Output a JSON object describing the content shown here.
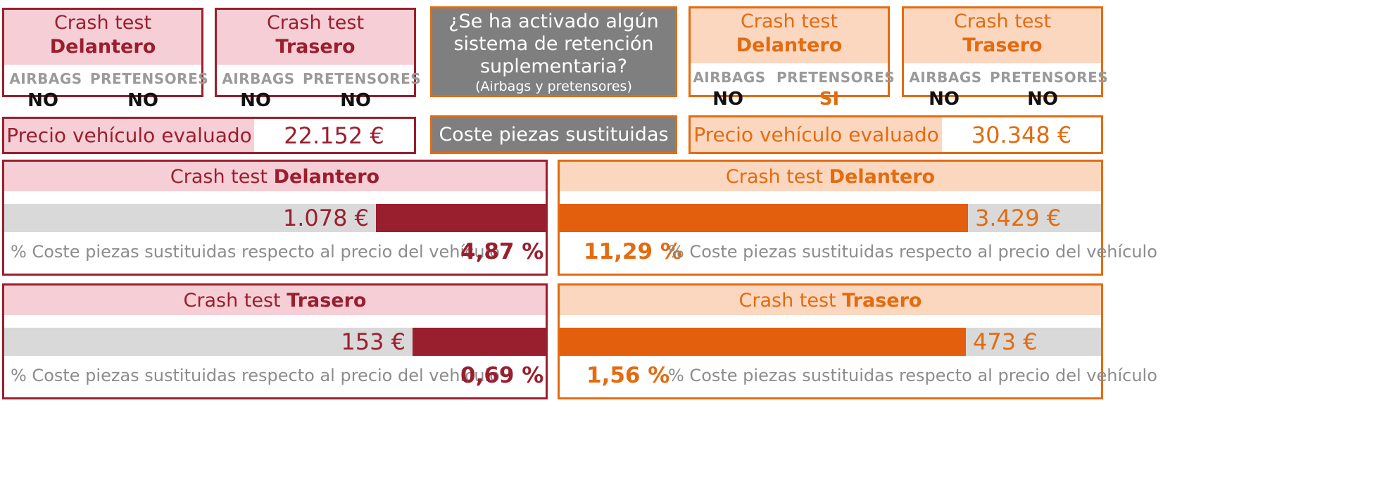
{
  "left_car": {
    "status": {
      "front": {
        "line1": "Crash test",
        "line2": "Delantero",
        "airbags_label": "AIRBAGS",
        "pretensores_label": "PRETENSORES",
        "airbags": "NO",
        "pretensores": "NO"
      },
      "rear": {
        "line1": "Crash test",
        "line2": "Trasero",
        "airbags_label": "AIRBAGS",
        "pretensores_label": "PRETENSORES",
        "airbags": "NO",
        "pretensores": "NO"
      }
    },
    "price_label": "Precio vehículo evaluado",
    "price": "22.152 €",
    "results": {
      "front": {
        "title_prefix": "Crash test ",
        "title_bold": "Delantero",
        "amount": "1.078 €",
        "bar_fraction": 0.314,
        "desc": "% Coste piezas sustituidas respecto al precio del vehículo",
        "pct": "4,87 %"
      },
      "rear": {
        "title_prefix": "Crash test ",
        "title_bold": "Trasero",
        "amount": "153 €",
        "bar_fraction": 0.246,
        "desc": "% Coste piezas sustituidas respecto al precio del vehículo",
        "pct": "0,69 %"
      }
    }
  },
  "center": {
    "question_line1": "¿Se ha activado algún",
    "question_line2": "sistema de retención",
    "question_line3": "suplementaria?",
    "question_sub": "(Airbags y pretensores)",
    "cost_label": "Coste piezas sustituidas"
  },
  "right_car": {
    "status": {
      "front": {
        "line1": "Crash test",
        "line2": "Delantero",
        "airbags_label": "AIRBAGS",
        "pretensores_label": "PRETENSORES",
        "airbags": "NO",
        "pretensores": "SI"
      },
      "rear": {
        "line1": "Crash test",
        "line2": "Trasero",
        "airbags_label": "AIRBAGS",
        "pretensores_label": "PRETENSORES",
        "airbags": "NO",
        "pretensores": "NO"
      }
    },
    "price_label": "Precio vehículo evaluado",
    "price": "30.348 €",
    "results": {
      "front": {
        "title_prefix": "Crash test ",
        "title_bold": "Delantero",
        "amount": "3.429 €",
        "bar_fraction": 0.754,
        "desc": "% Coste piezas sustituidas respecto al precio del vehículo",
        "pct": "11,29 %"
      },
      "rear": {
        "title_prefix": "Crash test ",
        "title_bold": "Trasero",
        "amount": "473 €",
        "bar_fraction": 0.75,
        "desc": "% Coste piezas sustituidas respecto al precio del vehículo",
        "pct": "1,56 %"
      }
    }
  },
  "colors": {
    "maroon": "#9a1f2e",
    "maroon_light": "#f6ced6",
    "orange": "#e36b10",
    "orange_light": "#fbd7c0",
    "gray_bar": "#d9d9d9",
    "gray_box": "#7f7f7f"
  }
}
